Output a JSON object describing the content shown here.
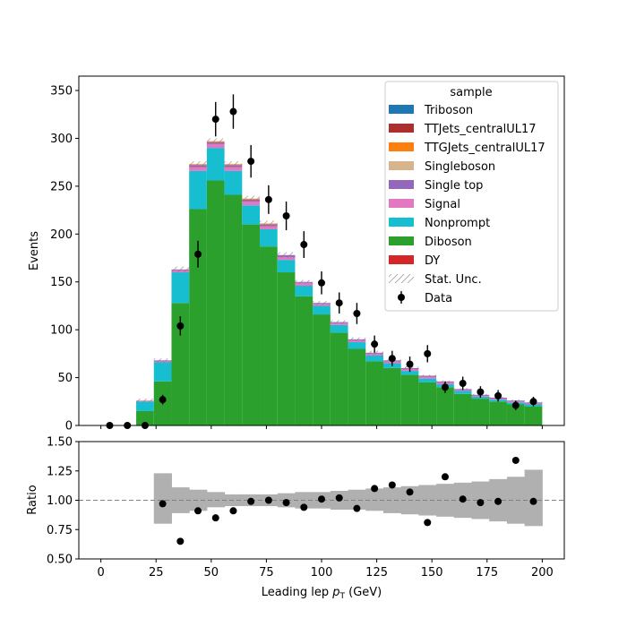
{
  "colors": {
    "Triboson": "#1f77b4",
    "TTJets_centralUL17": "#ab2f2f",
    "TTGJets_centralUL17": "#ff7f0e",
    "Singleboson": "#d8b48c",
    "Single top": "#9467bd",
    "Signal": "#e377c2",
    "Nonprompt": "#17becf",
    "Diboson": "#2ca02c",
    "DY": "#d62728",
    "data": "#000000",
    "ratio_band": "#b0b0b0",
    "unc_hatch": "#808080"
  },
  "chart_data": [
    {
      "type": "bar",
      "panel": "main",
      "stacked": true,
      "bin_edges": [
        0,
        8,
        16,
        24,
        32,
        40,
        48,
        56,
        64,
        72,
        80,
        88,
        96,
        104,
        112,
        120,
        128,
        136,
        144,
        152,
        160,
        168,
        176,
        184,
        192,
        200
      ],
      "xlim": [
        -10,
        210
      ],
      "ylim": [
        0,
        365
      ],
      "yticks": [
        0,
        50,
        100,
        150,
        200,
        250,
        300,
        350
      ],
      "ylabel": "Events",
      "legend_title": "sample",
      "legend_position": "top-right",
      "series": [
        {
          "name": "DY",
          "values": [
            0,
            0,
            0,
            0,
            0,
            0,
            0,
            0,
            0,
            0,
            0,
            0,
            0,
            0,
            0,
            0,
            0,
            0,
            0,
            0,
            0,
            0,
            0,
            0,
            0
          ]
        },
        {
          "name": "Diboson",
          "values": [
            0,
            0,
            15,
            46,
            128,
            226,
            256,
            241,
            210,
            187,
            160,
            135,
            116,
            97,
            80,
            67,
            60,
            53,
            45,
            40,
            33,
            28,
            25,
            22,
            20
          ]
        },
        {
          "name": "Nonprompt",
          "values": [
            0,
            0,
            10,
            20,
            32,
            40,
            34,
            25,
            20,
            18,
            13,
            11,
            9,
            8,
            7,
            6,
            5,
            4,
            4,
            3,
            3,
            2,
            2,
            2,
            2
          ]
        },
        {
          "name": "Signal",
          "values": [
            0,
            0,
            1,
            1,
            2,
            4,
            4,
            4,
            4,
            3,
            3,
            3,
            2,
            2,
            2,
            2,
            2,
            2,
            2,
            2,
            1,
            1,
            1,
            1,
            1
          ]
        },
        {
          "name": "Single top",
          "values": [
            0,
            0,
            0,
            1,
            1,
            2,
            2,
            2,
            2,
            2,
            2,
            1,
            1,
            1,
            1,
            1,
            1,
            1,
            1,
            1,
            1,
            1,
            1,
            1,
            1
          ]
        },
        {
          "name": "Singleboson",
          "values": [
            0,
            0,
            0,
            0,
            0,
            0,
            0,
            0,
            0,
            0,
            0,
            0,
            0,
            0,
            0,
            0,
            0,
            0,
            0,
            0,
            0,
            0,
            0,
            0,
            0
          ]
        },
        {
          "name": "TTGJets_centralUL17",
          "values": [
            0,
            0,
            0,
            0,
            0,
            1,
            1,
            1,
            1,
            1,
            0,
            0,
            0,
            0,
            0,
            0,
            0,
            0,
            0,
            0,
            0,
            0,
            0,
            0,
            0
          ]
        },
        {
          "name": "TTJets_centralUL17",
          "values": [
            0,
            0,
            0,
            0,
            0,
            0,
            0,
            0,
            0,
            0,
            0,
            0,
            0,
            0,
            0,
            0,
            0,
            0,
            0,
            0,
            0,
            0,
            0,
            0,
            0
          ]
        },
        {
          "name": "Triboson",
          "values": [
            0,
            0,
            0,
            0,
            0,
            0,
            0,
            0,
            0,
            0,
            0,
            0,
            0,
            0,
            0,
            0,
            0,
            0,
            0,
            0,
            0,
            0,
            0,
            0,
            0
          ]
        }
      ],
      "stat_unc": [
        0,
        0,
        2,
        2,
        3,
        3,
        3,
        3,
        3,
        3,
        3,
        2,
        2,
        2,
        2,
        2,
        2,
        2,
        1,
        1,
        1,
        1,
        1,
        1,
        1
      ],
      "data": {
        "name": "Data",
        "x": [
          4,
          12,
          20,
          28,
          36,
          44,
          52,
          60,
          68,
          76,
          84,
          92,
          100,
          108,
          116,
          124,
          132,
          140,
          148,
          156,
          164,
          172,
          180,
          188,
          196
        ],
        "y": [
          0,
          0,
          0,
          27,
          104,
          179,
          320,
          328,
          276,
          236,
          219,
          189,
          149,
          128,
          117,
          85,
          70,
          64,
          75,
          40,
          44,
          35,
          31,
          21,
          25
        ],
        "err": [
          0,
          0,
          0,
          5,
          10,
          14,
          18,
          18,
          17,
          15,
          15,
          14,
          12,
          11,
          11,
          9,
          8,
          8,
          9,
          6,
          7,
          6,
          6,
          5,
          5
        ]
      },
      "legend_entries": [
        "Triboson",
        "TTJets_centralUL17",
        "TTGJets_centralUL17",
        "Singleboson",
        "Single top",
        "Signal",
        "Nonprompt",
        "Diboson",
        "DY",
        "Stat. Unc.",
        "Data"
      ]
    },
    {
      "type": "scatter",
      "panel": "ratio",
      "xlim": [
        -10,
        210
      ],
      "ylim": [
        0.5,
        1.5
      ],
      "xticks": [
        0,
        25,
        50,
        75,
        100,
        125,
        150,
        175,
        200
      ],
      "yticks": [
        0.5,
        0.75,
        1.0,
        1.25,
        1.5
      ],
      "ytick_labels": [
        "0.50",
        "0.75",
        "1.00",
        "1.25",
        "1.50"
      ],
      "xlabel_main": "Leading lep ",
      "xlabel_sym": "p",
      "xlabel_sub": "T",
      "xlabel_unit": " (GeV)",
      "ylabel": "Ratio",
      "reference_line": 1.0,
      "band_bin_edges": [
        24,
        32,
        40,
        48,
        56,
        64,
        72,
        80,
        88,
        96,
        104,
        112,
        120,
        128,
        136,
        144,
        152,
        160,
        168,
        176,
        184,
        192,
        200
      ],
      "band_low": [
        0.8,
        0.89,
        0.91,
        0.94,
        0.95,
        0.95,
        0.95,
        0.94,
        0.93,
        0.93,
        0.92,
        0.92,
        0.91,
        0.89,
        0.88,
        0.87,
        0.86,
        0.85,
        0.84,
        0.82,
        0.8,
        0.78,
        0.79
      ],
      "band_high": [
        1.23,
        1.11,
        1.09,
        1.07,
        1.05,
        1.05,
        1.05,
        1.06,
        1.07,
        1.07,
        1.08,
        1.09,
        1.1,
        1.11,
        1.12,
        1.13,
        1.14,
        1.15,
        1.16,
        1.18,
        1.2,
        1.26,
        1.25
      ],
      "points": {
        "x": [
          28,
          36,
          44,
          52,
          60,
          68,
          76,
          84,
          92,
          100,
          108,
          116,
          124,
          132,
          140,
          148,
          156,
          164,
          172,
          180,
          188,
          196
        ],
        "y": [
          0.97,
          0.65,
          0.91,
          0.85,
          0.91,
          0.99,
          1.0,
          0.98,
          0.94,
          1.01,
          1.02,
          0.93,
          1.1,
          1.13,
          1.07,
          0.81,
          1.2,
          1.01,
          0.98,
          0.99,
          1.34,
          0.99
        ]
      }
    }
  ]
}
